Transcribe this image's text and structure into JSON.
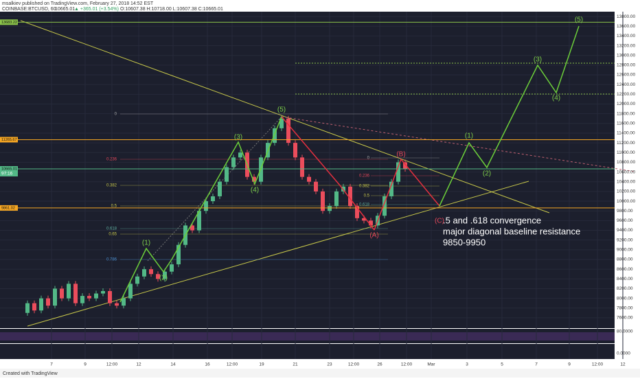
{
  "header": {
    "publisher": "msalkiev published on TradingView.com, February 27, 2018 14:52 EST",
    "symbol": "COINBASE:BTCUSD, 60",
    "last": "10665.01",
    "change": "▲ +365.01 (+3.54%)",
    "ohlc": "O:10607.38 H:10718.00 L:10607.38 C:10665.01"
  },
  "chart_data": {
    "type": "candlestick",
    "closes": [
      7700,
      7900,
      7750,
      8000,
      7850,
      8200,
      8000,
      8300,
      7900,
      8050,
      8000,
      8100,
      8150,
      7900,
      7850,
      8000,
      8300,
      8450,
      8600,
      8500,
      8400,
      8550,
      8700,
      9100,
      9500,
      9400,
      9800,
      10000,
      10100,
      10400,
      10700,
      10900,
      11000,
      10500,
      10400,
      10900,
      11200,
      11500,
      11700,
      11200,
      10900,
      10500,
      10400,
      10200,
      9800,
      9900,
      10200,
      10300,
      9900,
      9650,
      9600,
      9500,
      9700,
      10100,
      10400,
      10800,
      10665
    ],
    "up_color": "#53b987",
    "down_color": "#eb4d5c",
    "ylim": [
      7500,
      13900
    ],
    "yticks": [
      {
        "value": 7600,
        "label": "7600.00"
      },
      {
        "value": 7800,
        "label": "7800.00"
      },
      {
        "value": 8000,
        "label": "8000.00"
      },
      {
        "value": 8200,
        "label": "8200.00"
      },
      {
        "value": 8400,
        "label": "8400.00"
      },
      {
        "value": 8600,
        "label": "8600.00"
      },
      {
        "value": 8800,
        "label": "8800.00"
      },
      {
        "value": 9000,
        "label": "9000.00"
      },
      {
        "value": 9200,
        "label": "9200.00"
      },
      {
        "value": 9400,
        "label": "9400.00"
      },
      {
        "value": 9600,
        "label": "9600.00"
      },
      {
        "value": 9800,
        "label": "9800.00"
      },
      {
        "value": 10000,
        "label": "10000.00"
      },
      {
        "value": 10200,
        "label": "10200.00"
      },
      {
        "value": 10400,
        "label": "10400.00"
      },
      {
        "value": 10600,
        "label": "10600.00"
      },
      {
        "value": 10800,
        "label": "10800.00"
      },
      {
        "value": 11000,
        "label": "11000.00"
      },
      {
        "value": 11200,
        "label": "11200.00"
      },
      {
        "value": 11400,
        "label": "11400.00"
      },
      {
        "value": 11600,
        "label": "11600.00"
      },
      {
        "value": 11800,
        "label": "11800.00"
      },
      {
        "value": 12000,
        "label": "12000.00"
      },
      {
        "value": 12200,
        "label": "12200.00"
      },
      {
        "value": 12400,
        "label": "12400.00"
      },
      {
        "value": 12600,
        "label": "12600.00"
      },
      {
        "value": 12800,
        "label": "12800.00"
      },
      {
        "value": 13000,
        "label": "13000.00"
      },
      {
        "value": 13200,
        "label": "13200.00"
      },
      {
        "value": 13400,
        "label": "13400.00"
      },
      {
        "value": 13600,
        "label": "13600.00"
      },
      {
        "value": 13800,
        "label": "13800.00"
      }
    ],
    "price_lines": [
      {
        "value": 13683.22,
        "color": "#8bc34a"
      },
      {
        "value": 11265.67,
        "color": "#f5a623"
      },
      {
        "value": 10665.01,
        "color": "#53b987"
      },
      {
        "value": 9861.02,
        "color": "#f5a623"
      }
    ],
    "countdown": "97:16",
    "xticks": [
      "7",
      "9",
      "12:00",
      "12",
      "14",
      "16",
      "12:00",
      "19",
      "21",
      "23",
      "12:00",
      "26",
      "12:00",
      "Mar",
      "3",
      "5",
      "7",
      "9",
      "12:00",
      "12"
    ],
    "waves": [
      "(1)",
      "(2)",
      "(3)",
      "(4)",
      "(5)",
      "(A)",
      "(B)",
      "(C)",
      "(1)",
      "(2)",
      "(3)",
      "(4)",
      "(5)"
    ],
    "fib_left": [
      "0",
      "0.236",
      "0.382",
      "0.5",
      "0.618",
      "0.65",
      "0.786"
    ],
    "fib_right": [
      "0",
      "0.236",
      "0.382",
      "0.5",
      "0.618"
    ],
    "annotation": [
      ".5 and .618 convergence",
      "major diagonal baseline resistance",
      "9850-9950"
    ],
    "rsi_tick": "80.0000",
    "osc_tick": "0.0000"
  },
  "footer": "Created with TradingView"
}
